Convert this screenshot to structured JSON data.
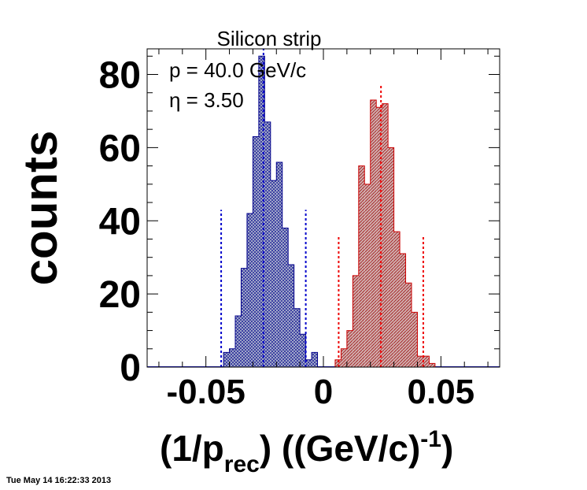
{
  "chart_data": {
    "type": "bar",
    "title": "Silicon strip",
    "annotations": [
      "p = 40.0 GeV/c",
      "η = 3.50"
    ],
    "xlabel": {
      "prefix": "(1/p",
      "sub": "rec",
      "mid": ") ((GeV/c)",
      "sup": "-1",
      "suffix": ")"
    },
    "ylabel": "counts",
    "xlim": [
      -0.075,
      0.075
    ],
    "ylim": [
      0,
      87
    ],
    "xticks": [
      {
        "value": -0.05,
        "label": "-0.05"
      },
      {
        "value": 0,
        "label": "0"
      },
      {
        "value": 0.05,
        "label": "0.05"
      }
    ],
    "yticks": [
      {
        "value": 0,
        "label": "0"
      },
      {
        "value": 20,
        "label": "20"
      },
      {
        "value": 40,
        "label": "40"
      },
      {
        "value": 60,
        "label": "60"
      },
      {
        "value": 80,
        "label": "80"
      }
    ],
    "bin_width": 0.0025,
    "series": [
      {
        "color": "#00008b",
        "fill": "#a4acc8",
        "hatch": "cross",
        "bins": [
          {
            "x0": -0.0425,
            "value": 4
          },
          {
            "x0": -0.04,
            "value": 5
          },
          {
            "x0": -0.0375,
            "value": 14
          },
          {
            "x0": -0.035,
            "value": 27
          },
          {
            "x0": -0.0325,
            "value": 42
          },
          {
            "x0": -0.03,
            "value": 63
          },
          {
            "x0": -0.0275,
            "value": 85
          },
          {
            "x0": -0.025,
            "value": 67
          },
          {
            "x0": -0.0225,
            "value": 51
          },
          {
            "x0": -0.02,
            "value": 56
          },
          {
            "x0": -0.0175,
            "value": 38
          },
          {
            "x0": -0.015,
            "value": 28
          },
          {
            "x0": -0.0125,
            "value": 16
          },
          {
            "x0": -0.01,
            "value": 9
          },
          {
            "x0": -0.0075,
            "value": 2
          },
          {
            "x0": -0.005,
            "value": 4
          }
        ],
        "mean": -0.0255,
        "mean_height": 87,
        "band": [
          -0.0435,
          -0.0075
        ],
        "band_height": 43
      },
      {
        "color": "#cc0000",
        "fill": "#c8a4a4",
        "hatch": "diagonal",
        "bins": [
          {
            "x0": 0.005,
            "value": 2
          },
          {
            "x0": 0.0075,
            "value": 5
          },
          {
            "x0": 0.01,
            "value": 10
          },
          {
            "x0": 0.0125,
            "value": 25
          },
          {
            "x0": 0.015,
            "value": 55
          },
          {
            "x0": 0.0175,
            "value": 50
          },
          {
            "x0": 0.02,
            "value": 73
          },
          {
            "x0": 0.0225,
            "value": 71
          },
          {
            "x0": 0.025,
            "value": 72
          },
          {
            "x0": 0.0275,
            "value": 60
          },
          {
            "x0": 0.03,
            "value": 37
          },
          {
            "x0": 0.0325,
            "value": 31
          },
          {
            "x0": 0.035,
            "value": 23
          },
          {
            "x0": 0.0375,
            "value": 15
          },
          {
            "x0": 0.04,
            "value": 3
          },
          {
            "x0": 0.0425,
            "value": 3
          },
          {
            "x0": 0.045,
            "value": 1
          }
        ],
        "mean": 0.0245,
        "mean_height": 77,
        "band": [
          0.0065,
          0.0425
        ],
        "band_height": 36
      }
    ]
  },
  "footer": {
    "timestamp": "Tue May 14 16:22:33 2013"
  }
}
